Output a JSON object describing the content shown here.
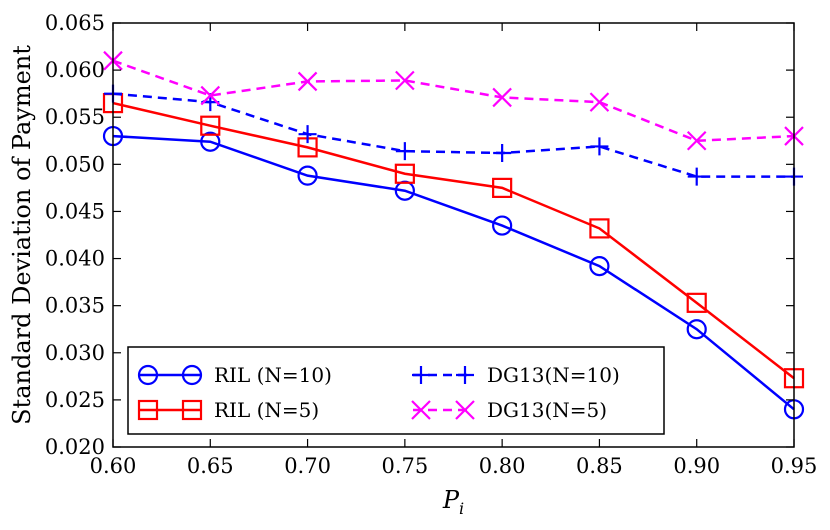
{
  "chart_data": {
    "type": "line",
    "title": "",
    "xlabel": "P_i",
    "xlabel_main": "P",
    "xlabel_sub": "i",
    "ylabel": "Standard Deviation of Payment",
    "x": [
      0.6,
      0.65,
      0.7,
      0.75,
      0.8,
      0.85,
      0.9,
      0.95
    ],
    "xlim": [
      0.6,
      0.95
    ],
    "ylim": [
      0.02,
      0.065
    ],
    "x_ticks": [
      "0.60",
      "0.65",
      "0.70",
      "0.75",
      "0.80",
      "0.85",
      "0.90",
      "0.95"
    ],
    "y_ticks": [
      "0.020",
      "0.025",
      "0.030",
      "0.035",
      "0.040",
      "0.045",
      "0.050",
      "0.055",
      "0.060",
      "0.065"
    ],
    "grid": false,
    "legend_position": "bottom-left",
    "series": [
      {
        "name": "RIL (N=10)",
        "color": "#0000ff",
        "marker": "circle",
        "linestyle": "solid",
        "values": [
          0.053,
          0.0524,
          0.0488,
          0.0472,
          0.0435,
          0.0392,
          0.0325,
          0.024
        ]
      },
      {
        "name": "RIL (N=5)",
        "color": "#ff0000",
        "marker": "square",
        "linestyle": "solid",
        "values": [
          0.0565,
          0.0541,
          0.0518,
          0.049,
          0.0475,
          0.0432,
          0.0353,
          0.0273
        ]
      },
      {
        "name": "DG13(N=10)",
        "color": "#0000ff",
        "marker": "plus",
        "linestyle": "dashed",
        "values": [
          0.0575,
          0.0566,
          0.0532,
          0.0514,
          0.0512,
          0.0519,
          0.0487,
          0.0487
        ]
      },
      {
        "name": "DG13(N=5)",
        "color": "#ff00ff",
        "marker": "x",
        "linestyle": "dashed",
        "values": [
          0.061,
          0.0573,
          0.0588,
          0.0589,
          0.0571,
          0.0566,
          0.0525,
          0.053
        ]
      }
    ]
  }
}
